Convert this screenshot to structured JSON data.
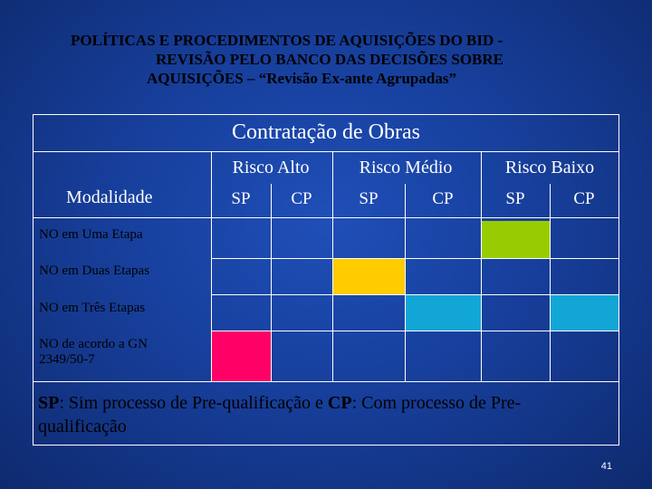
{
  "title": {
    "line1": "POLÍTICAS E PROCEDIMENTOS DE AQUISIÇÕES DO BID -",
    "line2": "REVISÃO PELO BANCO DAS DECISÕES SOBRE",
    "line3": "AQUISIÇÕES – “Revisão Ex-ante Agrupadas”"
  },
  "table": {
    "caption": "Contratação de Obras",
    "modalidade_label": "Modalidade",
    "risk_groups": [
      "Risco Alto",
      "Risco Médio",
      "Risco Baixo"
    ],
    "sub_columns": [
      "SP",
      "CP",
      "SP",
      "CP",
      "SP",
      "CP"
    ],
    "rows": [
      {
        "label": "NO em Uma Etapa"
      },
      {
        "label": "NO em Duas Etapas"
      },
      {
        "label": "NO em Três Etapas"
      },
      {
        "label": "NO de acordo a GN 2349/50-7"
      }
    ],
    "colors": {
      "green": "#99cc00",
      "yellow": "#ffcc00",
      "cyan": "#12a6d6",
      "pink": "#ff0066"
    }
  },
  "footnote": {
    "sp_abbr": "SP",
    "sp_text": ": Sim processo de Pre-qualificação e ",
    "cp_abbr": "CP",
    "cp_text": ": Com processo de Pre-qualificação"
  },
  "page_number": "41"
}
